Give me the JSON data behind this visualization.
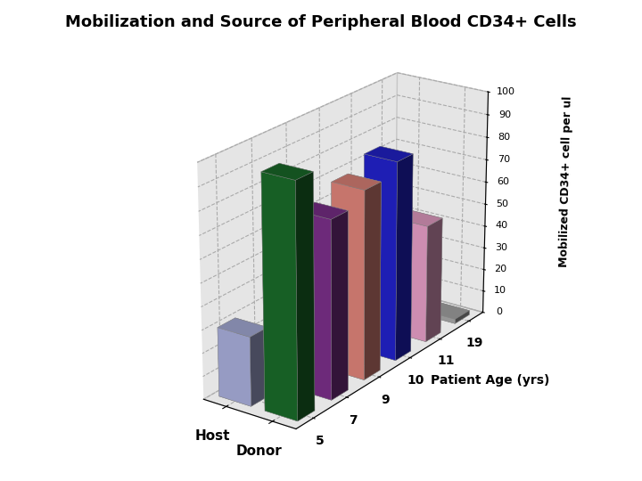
{
  "title": "Mobilization and Source of Peripheral Blood CD34+ Cells",
  "zlabel": "Mobilized CD34+ cell per ul",
  "age_xlabel": "Patient Age (yrs)",
  "series_labels": [
    "Host",
    "Donor"
  ],
  "age_labels": [
    "5",
    "7",
    "9",
    "10",
    "11",
    "19"
  ],
  "host_values": [
    30,
    0,
    0,
    0,
    0,
    0
  ],
  "donor_values": [
    100,
    77,
    82,
    87,
    52,
    2
  ],
  "host_color": "#aab0dd",
  "donor_colors": [
    "#1a6b2a",
    "#7b2f8a",
    "#e0857a",
    "#2222cc",
    "#e8a0c8",
    "#aaaaaa"
  ],
  "floor_alpha": 0.7,
  "ylim": [
    0,
    100
  ],
  "yticks": [
    0,
    10,
    20,
    30,
    40,
    50,
    60,
    70,
    80,
    90,
    100
  ],
  "wall_color": "#cccccc",
  "floor_color": "#b0b0b0",
  "title_fontsize": 13,
  "elev": 22,
  "azim": -55
}
